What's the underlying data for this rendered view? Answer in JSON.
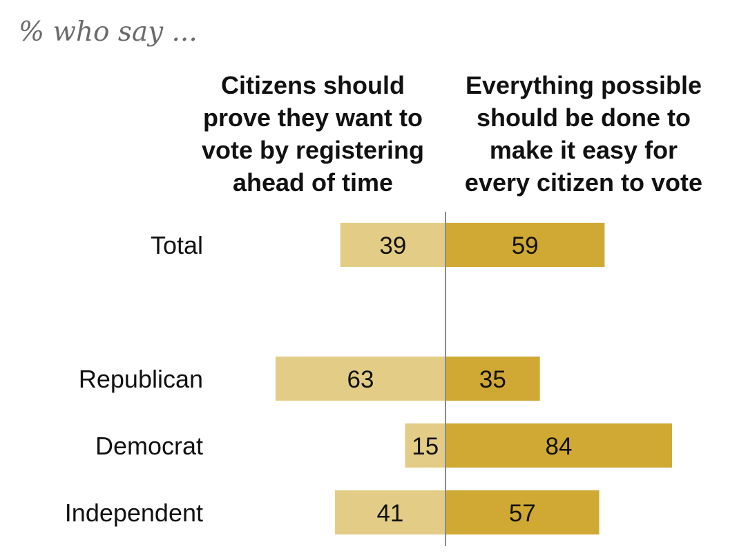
{
  "chart_data": {
    "type": "bar",
    "orientation": "horizontal-diverging",
    "subtitle": "% who say ...",
    "left_header": [
      "Citizens should",
      "prove they want to",
      "vote by registering",
      "ahead of time"
    ],
    "right_header": [
      "Everything possible",
      "should be done to",
      "make it easy for",
      "every citizen to vote"
    ],
    "categories": [
      "Total",
      "Republican",
      "Democrat",
      "Independent"
    ],
    "series": [
      {
        "name": "Citizens should prove they want to vote by registering ahead of time",
        "side": "left",
        "color": "#e3cd86",
        "values": [
          39,
          63,
          15,
          41
        ]
      },
      {
        "name": "Everything possible should be done to make it easy for every citizen to vote",
        "side": "right",
        "color": "#d0a834",
        "values": [
          59,
          35,
          84,
          57
        ]
      }
    ],
    "divider_color": "#8a8a8a",
    "xlabel": "",
    "ylabel": ""
  }
}
